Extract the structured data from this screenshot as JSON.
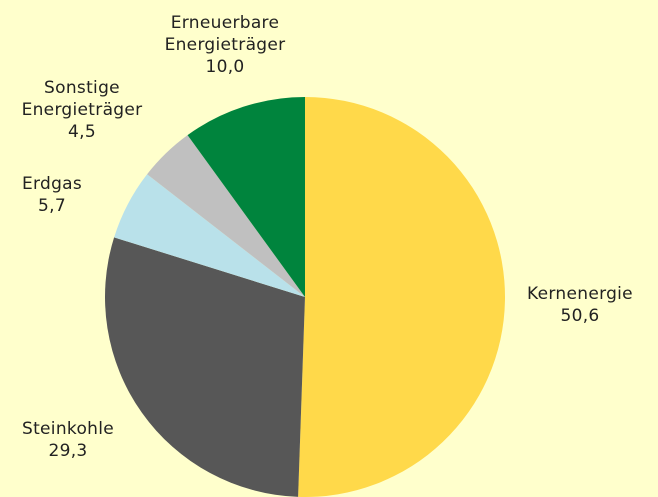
{
  "chart_data": {
    "type": "pie",
    "categories": [
      "Kernenergie",
      "Steinkohle",
      "Erdgas",
      "Sonstige\nEnergieträger",
      "Erneuerbare\nEnergieträger"
    ],
    "values": [
      50.6,
      29.3,
      5.7,
      4.5,
      10.0
    ],
    "value_labels": [
      "50,6",
      "29,3",
      "5,7",
      "4,5",
      "10,0"
    ],
    "colors": [
      "#ffd94a",
      "#575757",
      "#b9e1ea",
      "#c0c0c0",
      "#00843d"
    ]
  }
}
